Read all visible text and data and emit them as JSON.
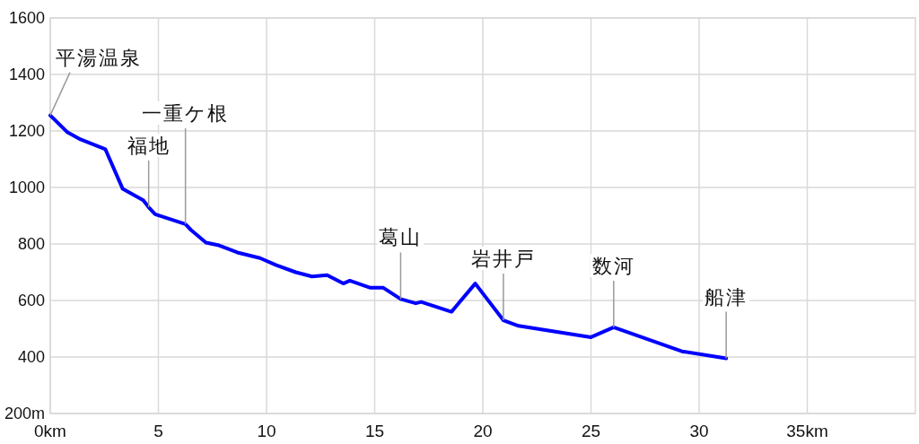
{
  "chart_data": {
    "type": "line",
    "color": "#0000ff",
    "marker": "none",
    "line_style": "solid",
    "grid": true,
    "x": [
      0,
      0.8,
      1.4,
      2.55,
      3.35,
      4.3,
      4.55,
      4.85,
      6.25,
      6.5,
      7.2,
      7.8,
      8.65,
      9.7,
      10.45,
      11.35,
      12.1,
      12.8,
      13.55,
      13.85,
      14.8,
      15.4,
      16.2,
      16.9,
      17.15,
      18.55,
      19.65,
      20.95,
      21.65,
      25,
      26.05,
      29.2,
      31.25
    ],
    "values": [
      1255,
      1195,
      1170,
      1135,
      995,
      955,
      930,
      905,
      870,
      850,
      805,
      795,
      770,
      750,
      725,
      700,
      685,
      690,
      660,
      670,
      645,
      645,
      605,
      590,
      595,
      560,
      660,
      530,
      510,
      470,
      505,
      420,
      395
    ],
    "xlim": [
      0,
      40
    ],
    "xticks": [
      {
        "value": 0,
        "label": "0km"
      },
      5,
      10,
      15,
      20,
      25,
      30,
      {
        "value": 35,
        "label": "35km"
      }
    ],
    "ylim": [
      200,
      1600
    ],
    "yticks": [
      {
        "value": 200,
        "label": "200m"
      },
      400,
      600,
      800,
      1000,
      1200,
      1400,
      1600
    ],
    "annotations": [
      {
        "text": "平湯温泉",
        "x": 0,
        "y": 1255
      },
      {
        "text": "福地",
        "x": 4.55,
        "y": 930
      },
      {
        "text": "一重ケ根",
        "x": 6.25,
        "y": 870
      },
      {
        "text": "葛山",
        "x": 16.2,
        "y": 605
      },
      {
        "text": "岩井戸",
        "x": 20.95,
        "y": 530
      },
      {
        "text": "数河",
        "x": 26.05,
        "y": 505
      },
      {
        "text": "船津",
        "x": 31.25,
        "y": 395
      }
    ]
  }
}
